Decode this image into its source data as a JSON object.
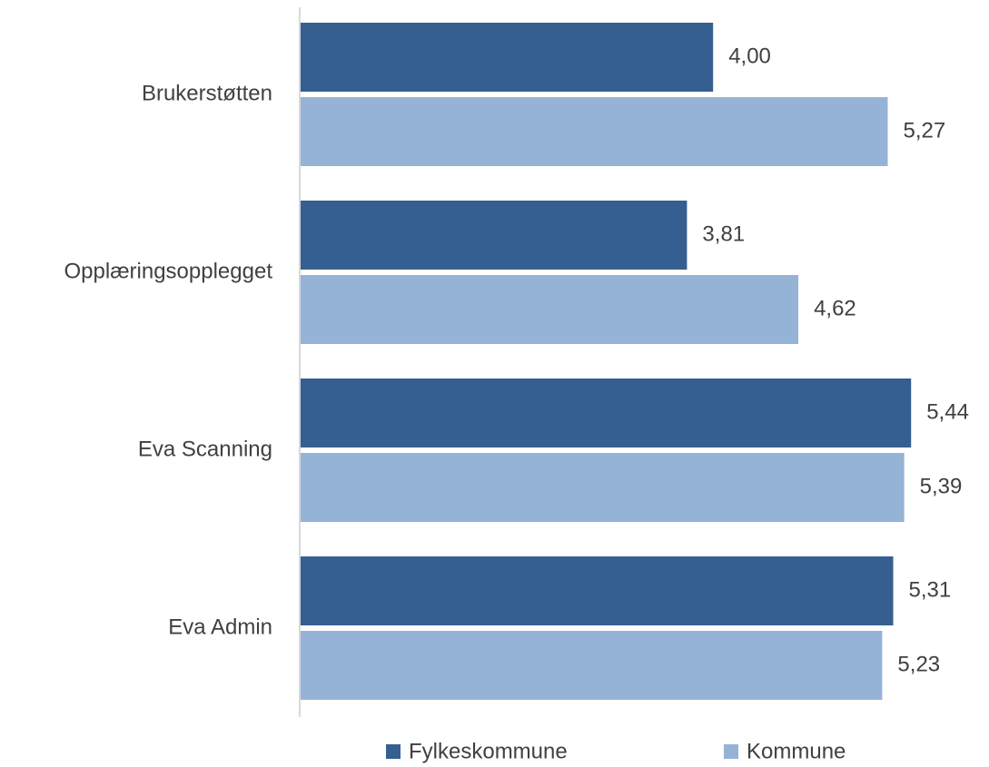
{
  "chart_data": {
    "type": "hbar",
    "categories": [
      "Brukerstøtten",
      "Opplæringsopplegget",
      "Eva Scanning",
      "Eva Admin"
    ],
    "series": [
      {
        "name": "Fylkeskommune",
        "color": "#355f91",
        "values": [
          4.0,
          3.81,
          5.44,
          5.31
        ],
        "value_labels": [
          "4,00",
          "3,81",
          "5,44",
          "5,31"
        ]
      },
      {
        "name": "Kommune",
        "color": "#95b3d7",
        "values": [
          5.27,
          4.62,
          5.39,
          5.23
        ],
        "value_labels": [
          "5,27",
          "4,62",
          "5,39",
          "5,23"
        ]
      }
    ],
    "xlim": [
      1,
      6
    ],
    "legend": "bottom"
  }
}
